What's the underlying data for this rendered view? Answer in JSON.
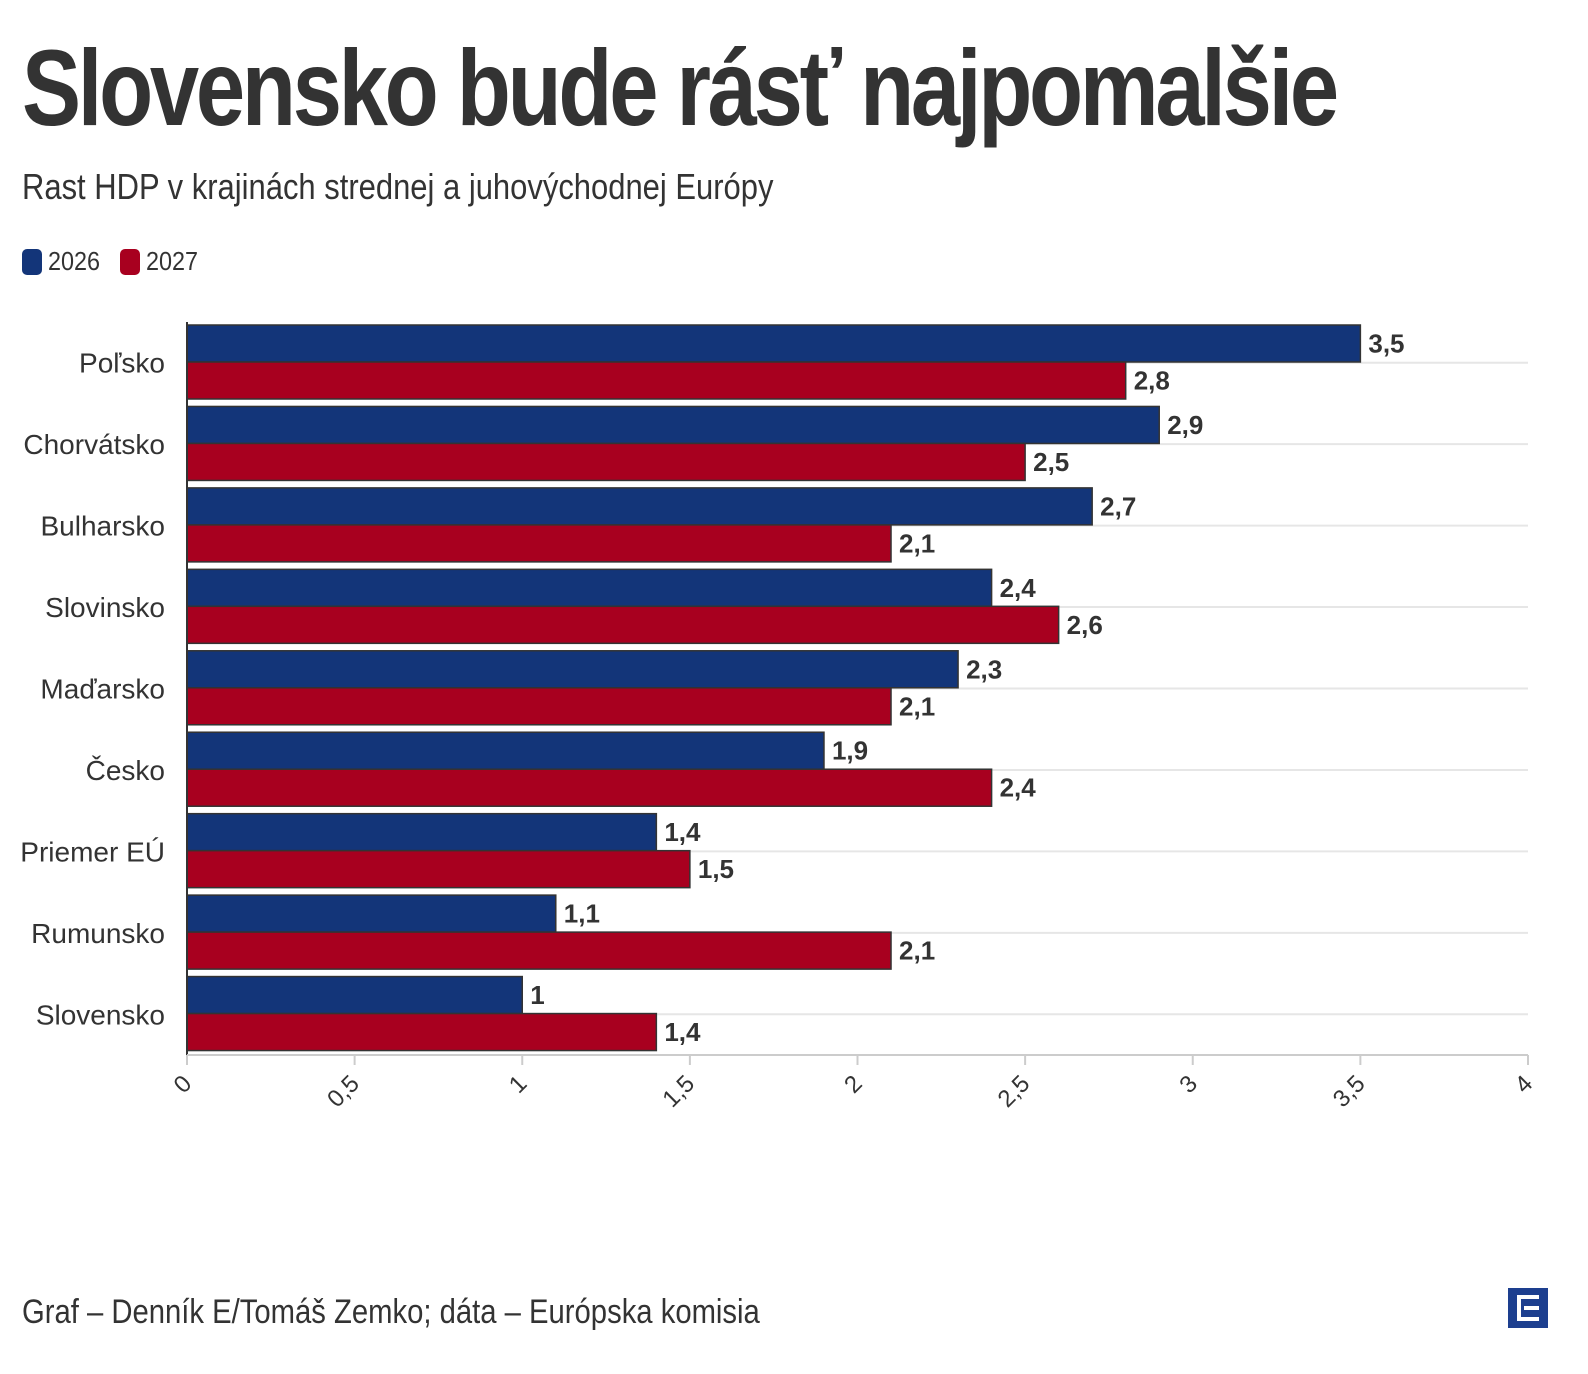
{
  "header": {
    "title": "Slovensko bude rásť najpomalšie",
    "subtitle": "Rast HDP v krajinách strednej a juhovýchodnej Európy"
  },
  "footer": {
    "source": "Graf – Denník E/Tomáš Zemko; dáta – Európska komisia",
    "logo_icon": "dennik-e-logo-icon"
  },
  "colors": {
    "series_2026": "#133579",
    "series_2027": "#a8001f",
    "text": "#333333",
    "grid": "#e6e6e6"
  },
  "chart_data": {
    "type": "bar",
    "orientation": "horizontal",
    "title": "Slovensko bude rásť najpomalšie",
    "subtitle": "Rast HDP v krajinách strednej a juhovýchodnej Európy",
    "categories": [
      "Poľsko",
      "Chorvátsko",
      "Bulharsko",
      "Slovinsko",
      "Maďarsko",
      "Česko",
      "Priemer EÚ",
      "Rumunsko",
      "Slovensko"
    ],
    "series": [
      {
        "name": "2026",
        "values": [
          3.5,
          2.9,
          2.7,
          2.4,
          2.3,
          1.9,
          1.4,
          1.1,
          1
        ],
        "labels": [
          "3,5",
          "2,9",
          "2,7",
          "2,4",
          "2,3",
          "1,9",
          "1,4",
          "1,1",
          "1"
        ]
      },
      {
        "name": "2027",
        "values": [
          2.8,
          2.5,
          2.1,
          2.6,
          2.1,
          2.4,
          1.5,
          2.1,
          1.4
        ],
        "labels": [
          "2,8",
          "2,5",
          "2,1",
          "2,6",
          "2,1",
          "2,4",
          "1,5",
          "2,1",
          "1,4"
        ]
      }
    ],
    "xlim": [
      0,
      4
    ],
    "ticks": [
      0,
      0.5,
      1,
      1.5,
      2,
      2.5,
      3,
      3.5,
      4
    ],
    "tick_labels": [
      "0",
      "0,5",
      "1",
      "1,5",
      "2",
      "2,5",
      "3",
      "3,5",
      "4"
    ],
    "xlabel": "",
    "ylabel": "",
    "legend_position": "top-left",
    "grid": true
  }
}
